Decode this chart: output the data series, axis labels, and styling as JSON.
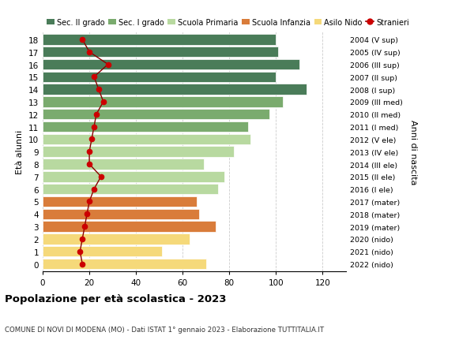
{
  "ages": [
    18,
    17,
    16,
    15,
    14,
    13,
    12,
    11,
    10,
    9,
    8,
    7,
    6,
    5,
    4,
    3,
    2,
    1,
    0
  ],
  "bar_values": [
    100,
    101,
    110,
    100,
    113,
    103,
    97,
    88,
    89,
    82,
    69,
    78,
    75,
    66,
    67,
    74,
    63,
    51,
    70
  ],
  "stranieri": [
    17,
    20,
    28,
    22,
    24,
    26,
    23,
    22,
    21,
    20,
    20,
    25,
    22,
    20,
    19,
    18,
    17,
    16,
    17
  ],
  "right_labels": [
    "2004 (V sup)",
    "2005 (IV sup)",
    "2006 (III sup)",
    "2007 (II sup)",
    "2008 (I sup)",
    "2009 (III med)",
    "2010 (II med)",
    "2011 (I med)",
    "2012 (V ele)",
    "2013 (IV ele)",
    "2014 (III ele)",
    "2015 (II ele)",
    "2016 (I ele)",
    "2017 (mater)",
    "2018 (mater)",
    "2019 (mater)",
    "2020 (nido)",
    "2021 (nido)",
    "2022 (nido)"
  ],
  "bar_colors": [
    "#4a7c59",
    "#4a7c59",
    "#4a7c59",
    "#4a7c59",
    "#4a7c59",
    "#7aab6e",
    "#7aab6e",
    "#7aab6e",
    "#b8d9a0",
    "#b8d9a0",
    "#b8d9a0",
    "#b8d9a0",
    "#b8d9a0",
    "#d97c3a",
    "#d97c3a",
    "#d97c3a",
    "#f5d97a",
    "#f5d97a",
    "#f5d97a"
  ],
  "legend_labels": [
    "Sec. II grado",
    "Sec. I grado",
    "Scuola Primaria",
    "Scuola Infanzia",
    "Asilo Nido",
    "Stranieri"
  ],
  "legend_colors": [
    "#4a7c59",
    "#7aab6e",
    "#b8d9a0",
    "#d97c3a",
    "#f5d97a",
    "#cc0000"
  ],
  "stranieri_color": "#8b0000",
  "stranieri_dot_color": "#cc0000",
  "ylabel_left": "Età alunni",
  "ylabel_right": "Anni di nascita",
  "title": "Popolazione per età scolastica - 2023",
  "subtitle": "COMUNE DI NOVI DI MODENA (MO) - Dati ISTAT 1° gennaio 2023 - Elaborazione TUTTITALIA.IT",
  "xlim": [
    0,
    130
  ],
  "xticks": [
    0,
    20,
    40,
    60,
    80,
    100,
    120
  ],
  "grid_color": "#cccccc"
}
